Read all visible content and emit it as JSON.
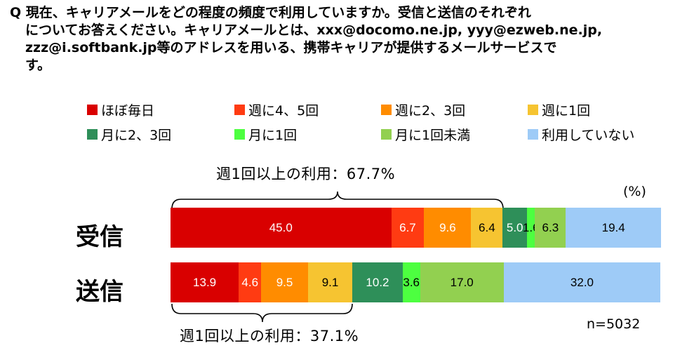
{
  "question": {
    "lines": [
      "Q 現在、キャリアメールをどの程度の頻度で利用していますか。受信と送信のそれぞれ",
      "についてお答えください。キャリアメールとは、xxx@docomo.ne.jp, yyy@ezweb.ne.jp,",
      "zzz@i.softbank.jp等のアドレスを用いる、携帯キャリアが提供するメールサービスで",
      "す。"
    ]
  },
  "chart_data": {
    "type": "bar",
    "orientation": "horizontal",
    "stacked": true,
    "unit_label": "(%)",
    "n_label": "n=5032",
    "xlim": [
      0,
      100
    ],
    "categories": [
      "受信",
      "送信"
    ],
    "series": [
      {
        "name": "ほぼ毎日",
        "color": "#d90000",
        "values": [
          45.0,
          13.9
        ],
        "labels": [
          "45.0",
          "13.9"
        ]
      },
      {
        "name": "週に4、5回",
        "color": "#ff3b12",
        "values": [
          6.7,
          4.6
        ],
        "labels": [
          "6.7",
          "4.6"
        ]
      },
      {
        "name": "週に2、3回",
        "color": "#ff8c00",
        "values": [
          9.6,
          9.5
        ],
        "labels": [
          "9.6",
          "9.5"
        ]
      },
      {
        "name": "週に1回",
        "color": "#f6c431",
        "values": [
          6.4,
          9.1
        ],
        "labels": [
          "6.4",
          "9.1"
        ]
      },
      {
        "name": "月に2、3回",
        "color": "#2e8f59",
        "values": [
          5.0,
          10.2
        ],
        "labels": [
          "5.0",
          "10.2"
        ]
      },
      {
        "name": "月に1回",
        "color": "#4dff40",
        "values": [
          1.6,
          3.6
        ],
        "labels": [
          "1.6",
          "3.6"
        ]
      },
      {
        "name": "月に1回未満",
        "color": "#92d050",
        "values": [
          6.3,
          17.0
        ],
        "labels": [
          "6.3",
          "17.0"
        ]
      },
      {
        "name": "利用していない",
        "color": "#9ecbf7",
        "values": [
          19.4,
          32.0
        ],
        "labels": [
          "19.4",
          "32.0"
        ]
      }
    ],
    "annotations": [
      {
        "text": "週1回以上の利用：67.7%",
        "category": "受信"
      },
      {
        "text": "週1回以上の利用：37.1%",
        "category": "送信"
      }
    ]
  }
}
